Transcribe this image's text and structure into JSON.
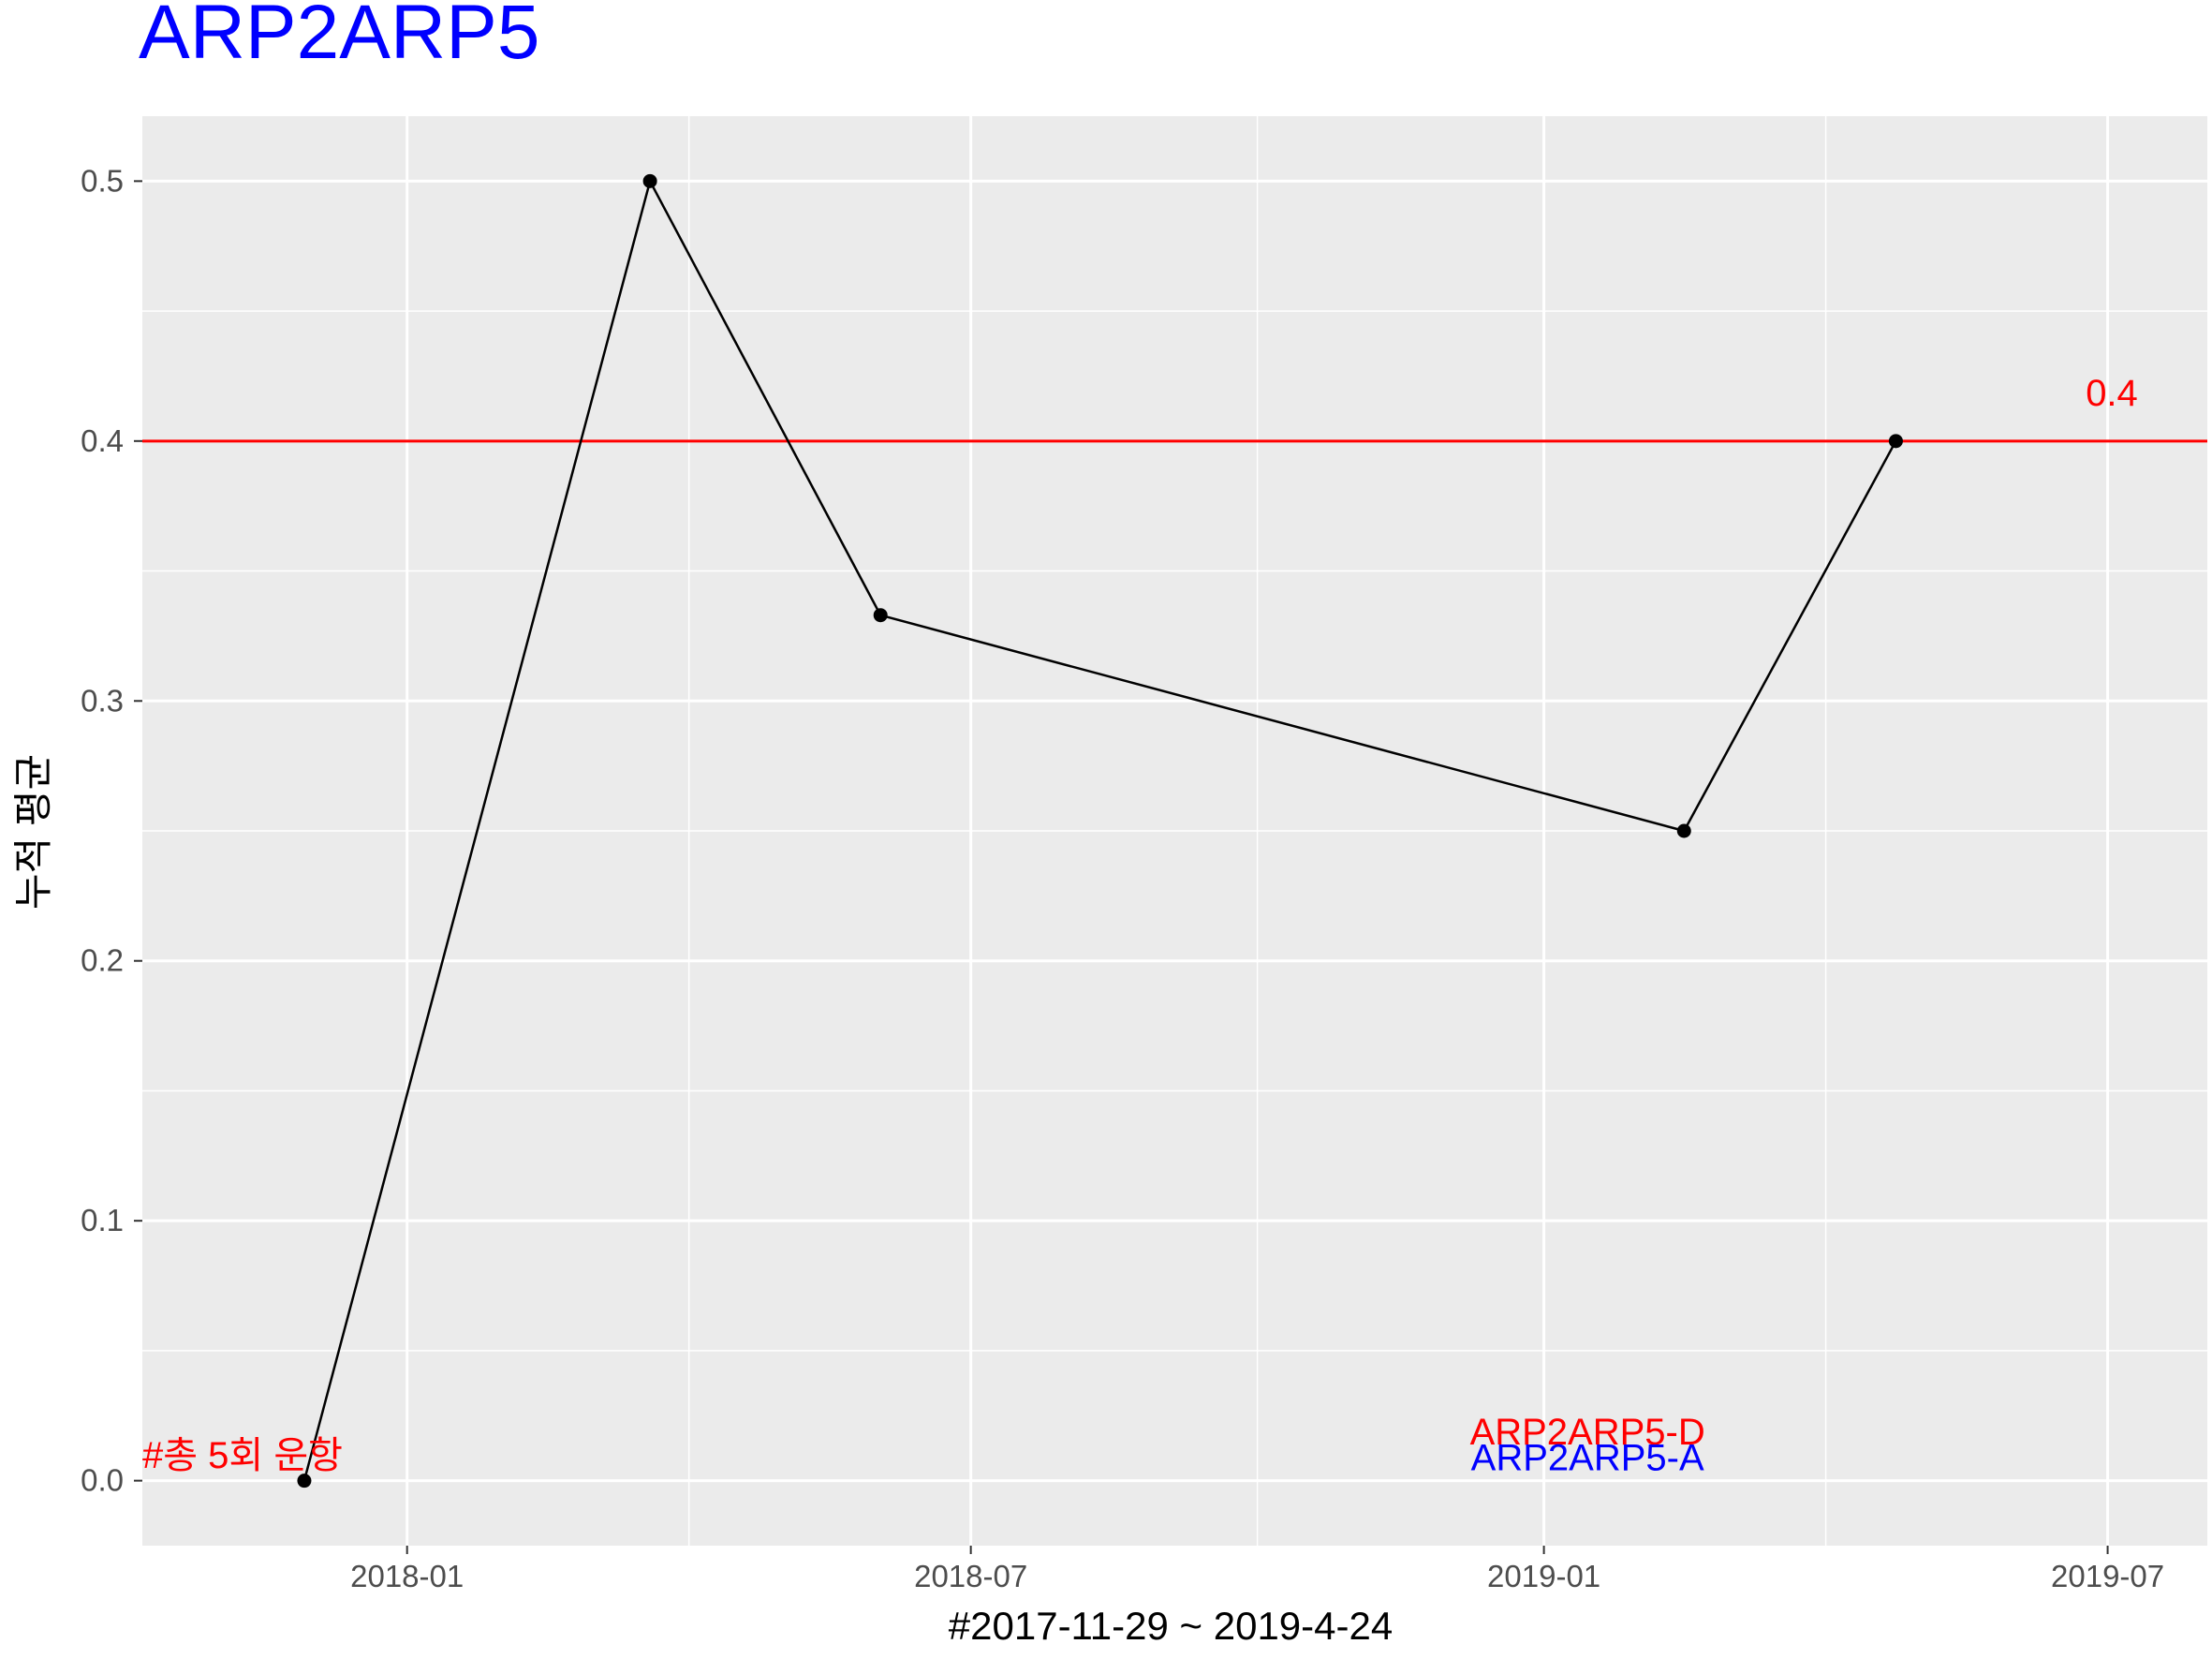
{
  "chart_data": {
    "type": "line",
    "title": "ARP2ARP5",
    "title_color": "#0000ff",
    "xlabel": "#2017-11-29 ~ 2019-4-24",
    "ylabel": "누적 평균",
    "x_dates": [
      "2017-11-29",
      "2018-03-20",
      "2018-06-02",
      "2019-02-15",
      "2019-04-24"
    ],
    "values": [
      0.0,
      0.5,
      0.333,
      0.25,
      0.4
    ],
    "ylim": [
      -0.025,
      0.525
    ],
    "xlim": [
      "2017-10-08",
      "2019-08-02"
    ],
    "y_ticks": [
      0.0,
      0.1,
      0.2,
      0.3,
      0.4,
      0.5
    ],
    "y_tick_labels": [
      "0.0",
      "0.1",
      "0.2",
      "0.3",
      "0.4",
      "0.5"
    ],
    "x_ticks": [
      "2018-01-01",
      "2018-07-01",
      "2019-01-01",
      "2019-07-01"
    ],
    "x_tick_labels": [
      "2018-01",
      "2018-07",
      "2019-01",
      "2019-07"
    ],
    "hline": {
      "value": 0.4,
      "label": "0.4",
      "color": "#ff0000"
    },
    "annotations": [
      {
        "text": "#총 5회 운항",
        "color": "#ff0000",
        "x": "2017-10-08",
        "y": 0.01,
        "anchor": "start"
      },
      {
        "text": "ARP2ARP5-D",
        "color": "#ff0000",
        "x": "2019-01-15",
        "y": 0.019,
        "anchor": "middle"
      },
      {
        "text": "ARP2ARP5-A",
        "color": "#0000ff",
        "x": "2019-01-15",
        "y": 0.009,
        "anchor": "middle"
      }
    ],
    "panel_background": "#ebebeb",
    "grid_color": "#ffffff",
    "line_color": "#000000",
    "grid": true
  }
}
